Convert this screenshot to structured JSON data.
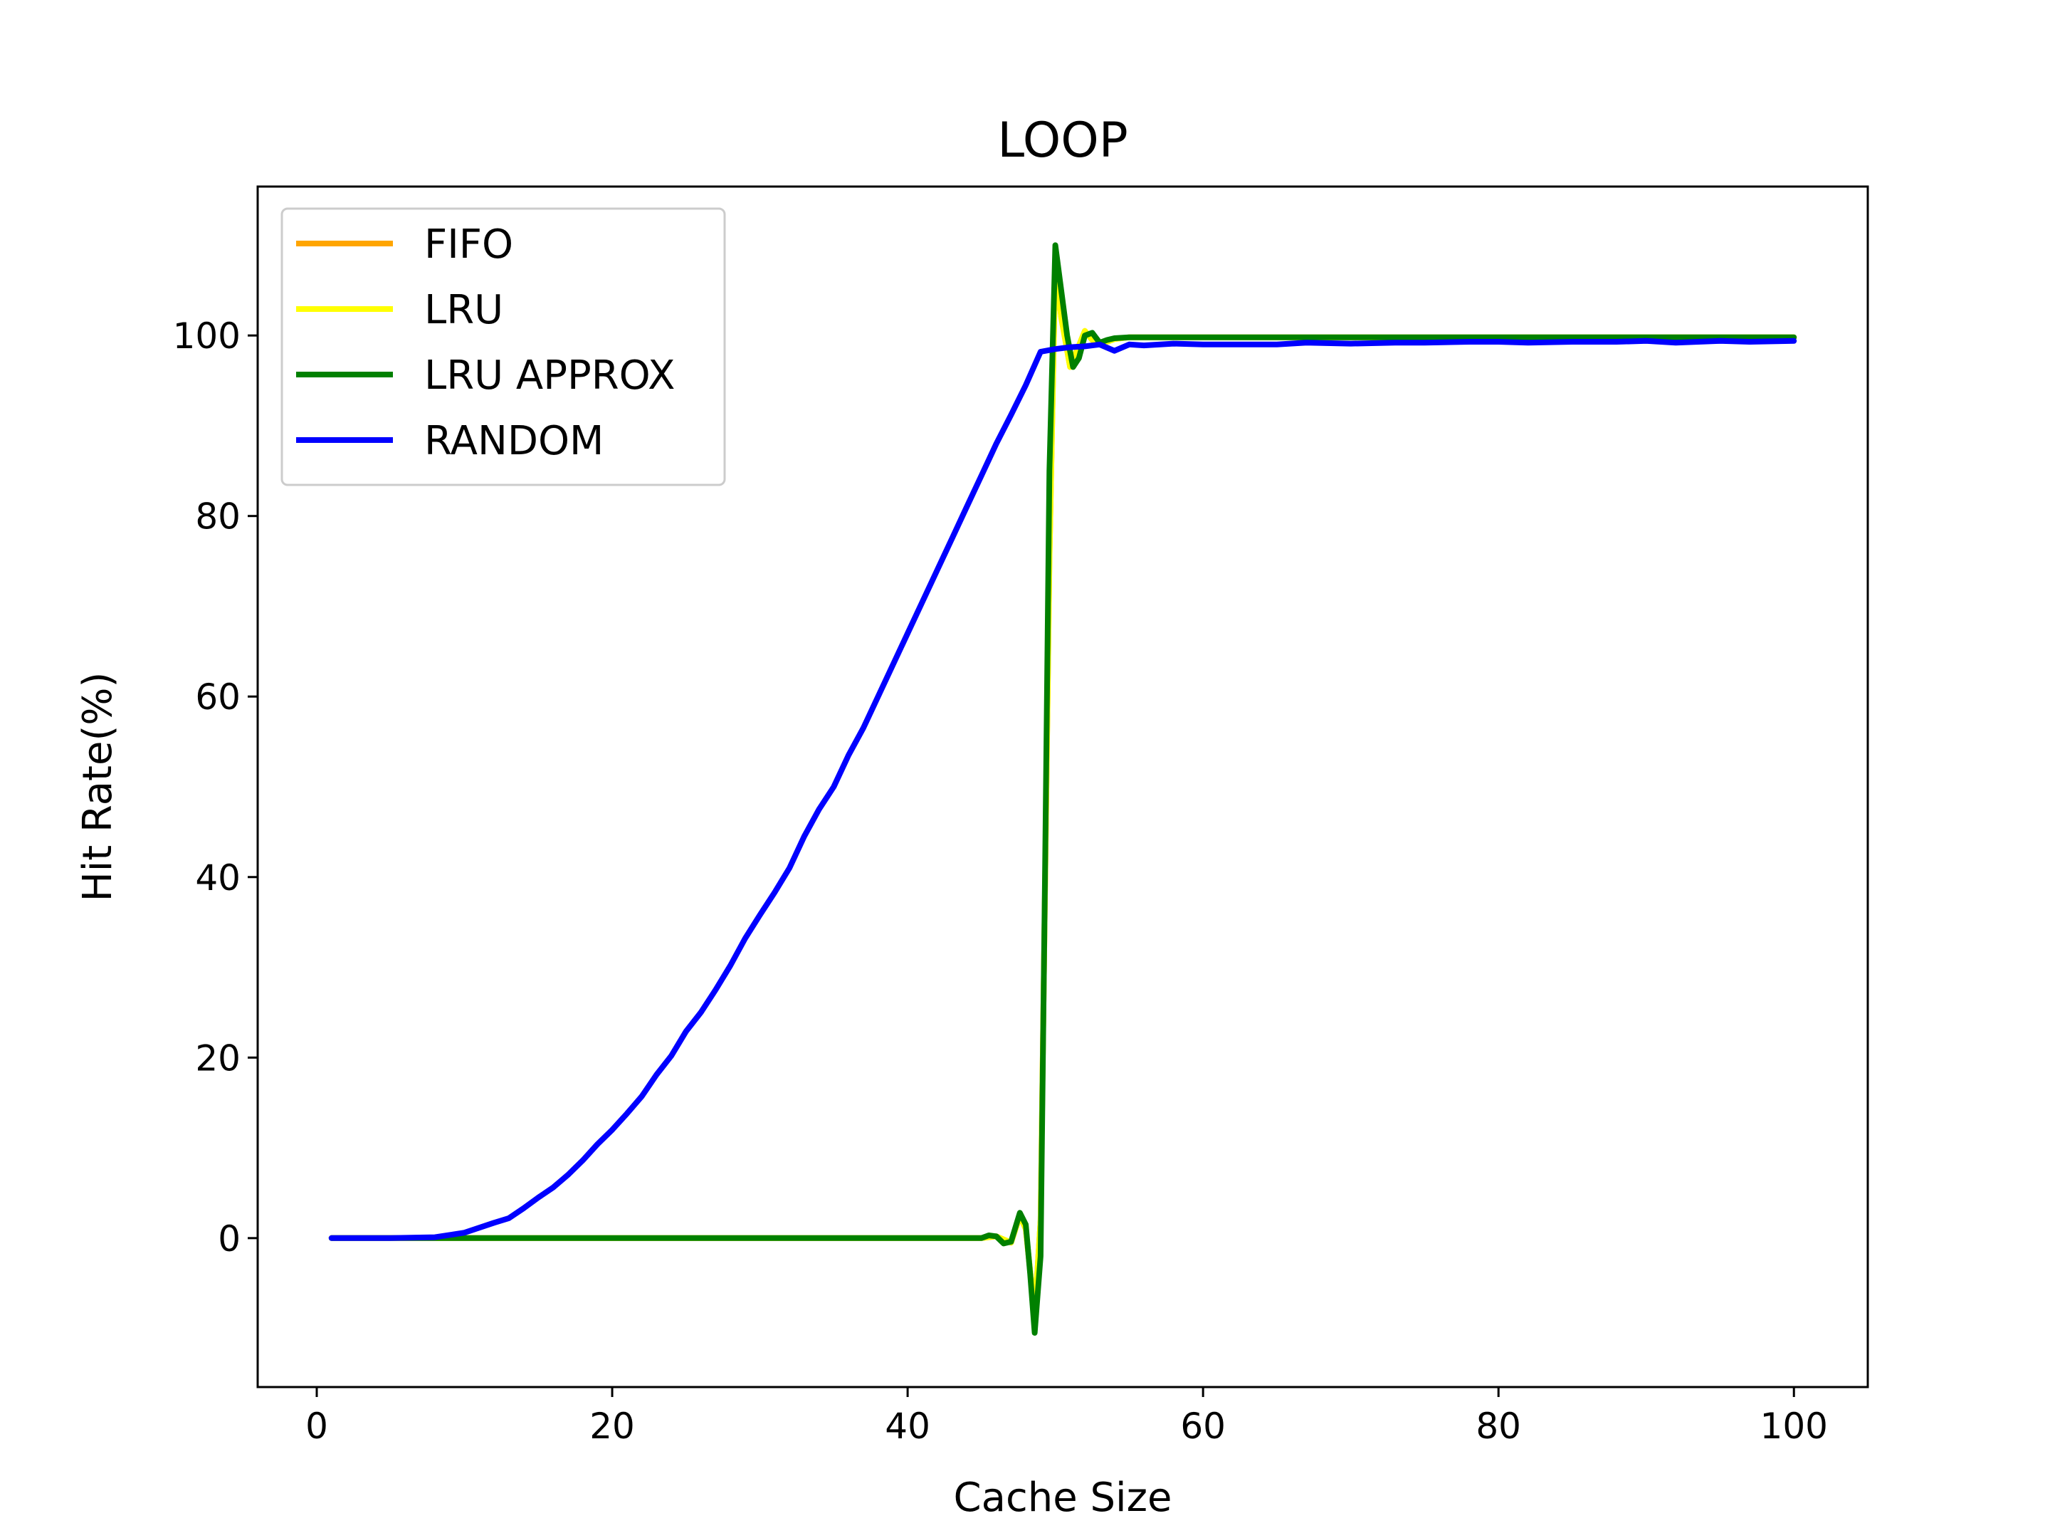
{
  "chart_data": {
    "type": "line",
    "title": "LOOP",
    "xlabel": "Cache Size",
    "ylabel": "Hit Rate(%)",
    "xlim": [
      -4,
      105
    ],
    "ylim": [
      -16.5,
      116.5
    ],
    "xticks": [
      0,
      20,
      40,
      60,
      80,
      100
    ],
    "yticks": [
      0,
      20,
      40,
      60,
      80,
      100
    ],
    "grid": false,
    "legend_position": "top-left",
    "series": [
      {
        "name": "FIFO",
        "color": "#ffa500",
        "x": [
          1,
          44,
          45,
          46,
          47,
          47.6,
          48,
          48.6,
          49,
          49.6,
          50,
          50.4,
          51,
          51.5,
          52,
          52.5,
          53,
          54,
          55,
          100
        ],
        "y": [
          0,
          0,
          0,
          0.2,
          -0.5,
          2.5,
          1.0,
          -8.5,
          2.0,
          75,
          108,
          102,
          96.5,
          98.5,
          100.5,
          99.5,
          99.0,
          99.6,
          99.8,
          99.8
        ]
      },
      {
        "name": "LRU",
        "color": "#ffff00",
        "x": [
          1,
          44,
          45,
          46,
          47,
          47.6,
          48,
          48.6,
          49,
          49.6,
          50,
          50.4,
          51,
          51.5,
          52,
          52.5,
          53,
          54,
          55,
          100
        ],
        "y": [
          0,
          0,
          0,
          0.2,
          -0.5,
          2.5,
          1.0,
          -8.5,
          2.0,
          75,
          108,
          102,
          96.5,
          98.5,
          100.5,
          99.5,
          99.0,
          99.6,
          99.8,
          99.8
        ]
      },
      {
        "name": "LRU APPROX",
        "color": "#008000",
        "x": [
          1,
          44,
          45,
          45.5,
          46,
          46.5,
          47,
          47.6,
          48,
          48.3,
          48.6,
          49,
          49.3,
          49.6,
          50,
          50.4,
          50.8,
          51.2,
          51.6,
          52,
          52.5,
          53,
          53.5,
          54,
          55,
          60,
          100
        ],
        "y": [
          0,
          0,
          0,
          0.3,
          0.2,
          -0.6,
          -0.4,
          2.8,
          1.5,
          -4,
          -10.5,
          -2,
          40,
          85,
          110,
          105,
          100,
          96.5,
          97.5,
          100,
          100.3,
          99.2,
          99.5,
          99.7,
          99.8,
          99.8,
          99.8
        ]
      },
      {
        "name": "RANDOM",
        "color": "#0000ff",
        "x": [
          1,
          5,
          8,
          10,
          12,
          13,
          14,
          15,
          16,
          17,
          18,
          19,
          20,
          21,
          22,
          23,
          24,
          25,
          26,
          27,
          28,
          29,
          30,
          31,
          32,
          33,
          34,
          35,
          36,
          37,
          38,
          39,
          40,
          41,
          42,
          43,
          44,
          45,
          46,
          47,
          48,
          49,
          50,
          51,
          52,
          53,
          54,
          55,
          56,
          58,
          60,
          62,
          65,
          67,
          70,
          73,
          75,
          78,
          80,
          82,
          85,
          88,
          90,
          92,
          95,
          97,
          100
        ],
        "y": [
          0,
          0,
          0.1,
          0.6,
          1.7,
          2.2,
          3.3,
          4.5,
          5.6,
          7.0,
          8.6,
          10.4,
          12.0,
          13.8,
          15.7,
          18.1,
          20.2,
          22.9,
          25.0,
          27.5,
          30.2,
          33.2,
          35.8,
          38.3,
          41.0,
          44.5,
          47.5,
          50.0,
          53.5,
          56.5,
          60.0,
          63.5,
          67.0,
          70.5,
          74.0,
          77.5,
          81.0,
          84.5,
          88.0,
          91.2,
          94.5,
          98.2,
          98.5,
          98.7,
          98.8,
          99.0,
          98.3,
          99.0,
          98.9,
          99.1,
          99.0,
          99.0,
          99.0,
          99.2,
          99.1,
          99.2,
          99.2,
          99.3,
          99.3,
          99.2,
          99.3,
          99.3,
          99.4,
          99.2,
          99.4,
          99.3,
          99.4
        ]
      }
    ]
  }
}
